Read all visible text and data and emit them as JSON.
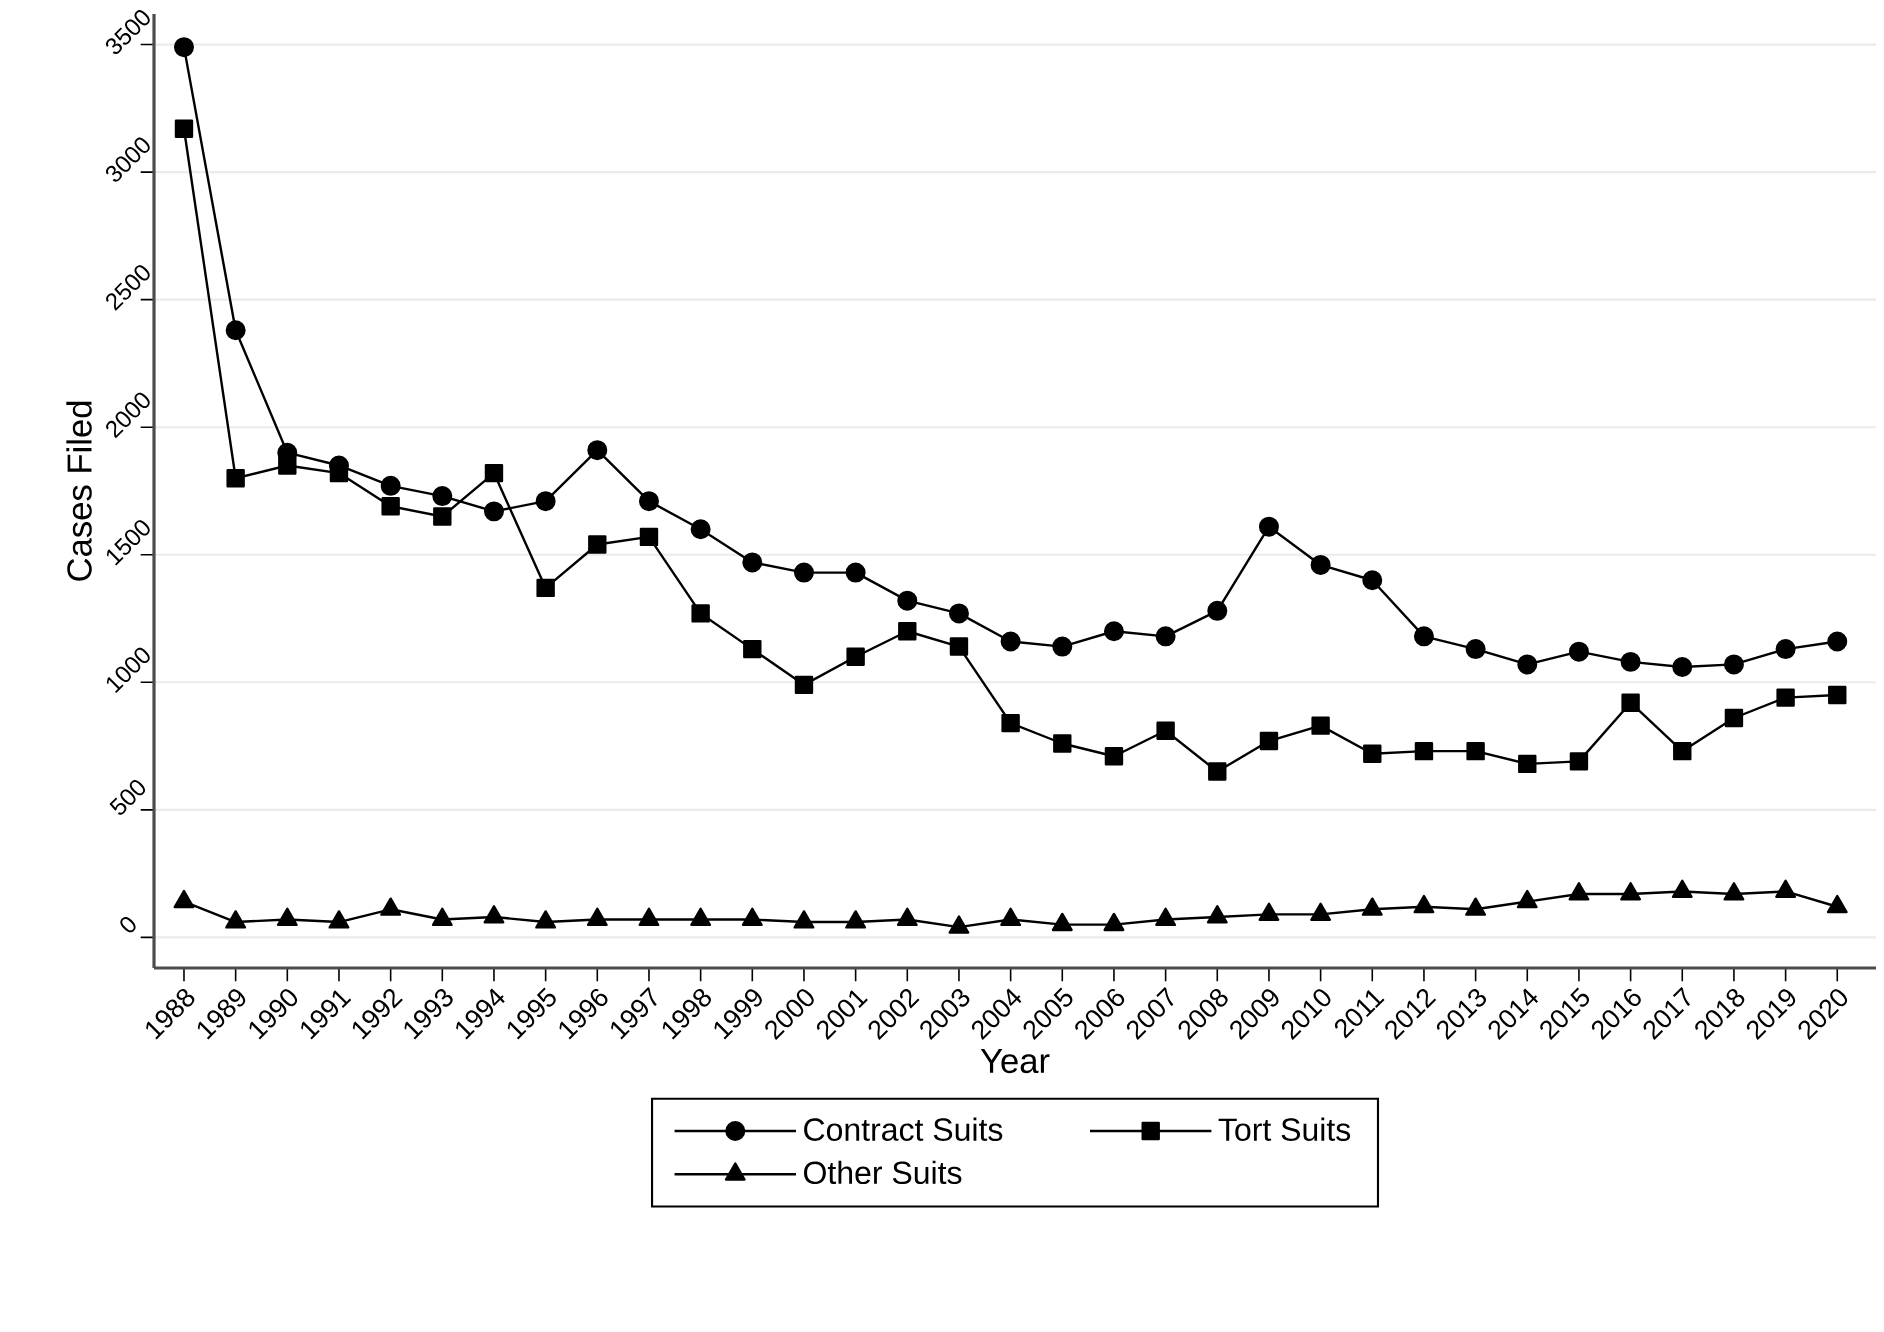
{
  "chart_data": {
    "type": "line",
    "xlabel": "Year",
    "ylabel": "Cases Filed",
    "categories": [
      "1988",
      "1989",
      "1990",
      "1991",
      "1992",
      "1993",
      "1994",
      "1995",
      "1996",
      "1997",
      "1998",
      "1999",
      "2000",
      "2001",
      "2002",
      "2003",
      "2004",
      "2005",
      "2006",
      "2007",
      "2008",
      "2009",
      "2010",
      "2011",
      "2012",
      "2013",
      "2014",
      "2015",
      "2016",
      "2017",
      "2018",
      "2019",
      "2020"
    ],
    "series": [
      {
        "name": "Contract Suits",
        "color": "#000000",
        "marker": "circle",
        "values": [
          3490,
          2380,
          1900,
          1850,
          1770,
          1730,
          1670,
          1710,
          1910,
          1710,
          1600,
          1470,
          1430,
          1430,
          1320,
          1270,
          1160,
          1140,
          1200,
          1180,
          1280,
          1610,
          1460,
          1400,
          1180,
          1130,
          1070,
          1120,
          1080,
          1060,
          1070,
          1130,
          1160
        ]
      },
      {
        "name": "Tort Suits",
        "color": "#000000",
        "marker": "square",
        "values": [
          3170,
          1800,
          1850,
          1820,
          1690,
          1650,
          1820,
          1370,
          1540,
          1570,
          1270,
          1130,
          990,
          1100,
          1200,
          1140,
          840,
          760,
          710,
          810,
          650,
          770,
          830,
          720,
          730,
          730,
          680,
          690,
          920,
          730,
          860,
          940,
          950
        ]
      },
      {
        "name": "Other Suits",
        "color": "#000000",
        "marker": "triangle",
        "values": [
          140,
          60,
          70,
          60,
          110,
          70,
          80,
          60,
          70,
          70,
          70,
          70,
          60,
          60,
          70,
          40,
          70,
          50,
          50,
          70,
          80,
          90,
          90,
          110,
          120,
          110,
          140,
          170,
          170,
          180,
          170,
          180,
          120
        ]
      }
    ],
    "ylim": [
      -120,
      3620
    ],
    "yticks": [
      0,
      500,
      1000,
      1500,
      2000,
      2500,
      3000,
      3500
    ],
    "grid": "y",
    "legend": "bottom",
    "line_style": "solid"
  }
}
